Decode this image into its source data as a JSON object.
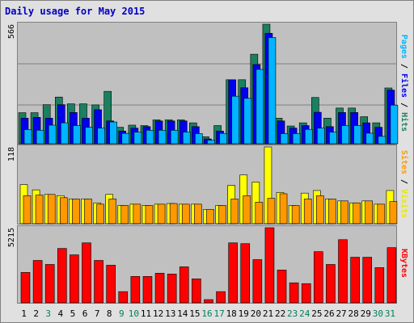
{
  "title": "Daily usage for May 2015",
  "colors": {
    "hits": "#1a8060",
    "files": "#0000ee",
    "pages": "#00b4ff",
    "visits": "#ffff00",
    "sites": "#ff9900",
    "kbytes": "#ff0000",
    "weekday_label": "#000000",
    "weekend_label": "#00805c",
    "plot_bg": "#c0c0c0",
    "frame_bg": "#e0e0e0"
  },
  "legends": {
    "top": [
      {
        "text": "Pages",
        "color": "#00b4ff"
      },
      {
        "text": " / ",
        "color": "#000000"
      },
      {
        "text": "Files",
        "color": "#0000ee"
      },
      {
        "text": " / ",
        "color": "#000000"
      },
      {
        "text": "Hits",
        "color": "#1a8060"
      }
    ],
    "mid": [
      {
        "text": "Sites",
        "color": "#ff9900"
      },
      {
        "text": " / ",
        "color": "#000000"
      },
      {
        "text": "Visits",
        "color": "#e8e800"
      }
    ],
    "bot": [
      {
        "text": "KBytes",
        "color": "#ff0000"
      }
    ]
  },
  "chart_data": [
    {
      "type": "bar",
      "ymax_label": "566",
      "ylim": [
        0,
        566
      ],
      "categories": [
        "1",
        "2",
        "3",
        "4",
        "5",
        "6",
        "7",
        "8",
        "9",
        "10",
        "11",
        "12",
        "13",
        "14",
        "15",
        "16",
        "17",
        "18",
        "19",
        "20",
        "21",
        "22",
        "23",
        "24",
        "25",
        "26",
        "27",
        "28",
        "29",
        "30",
        "31"
      ],
      "weekend_days": [
        "3",
        "9",
        "10",
        "16",
        "17",
        "23",
        "24",
        "30",
        "31"
      ],
      "series": [
        {
          "name": "Hits",
          "values": [
            147,
            147,
            185,
            221,
            189,
            189,
            184,
            248,
            78,
            88,
            86,
            113,
            113,
            113,
            99,
            33,
            86,
            303,
            303,
            424,
            566,
            121,
            84,
            99,
            219,
            121,
            169,
            169,
            128,
            99,
            264
          ]
        },
        {
          "name": "Files",
          "values": [
            121,
            125,
            121,
            185,
            148,
            121,
            161,
            108,
            60,
            74,
            81,
            108,
            108,
            108,
            81,
            23,
            60,
            303,
            265,
            375,
            523,
            108,
            74,
            86,
            149,
            81,
            148,
            148,
            99,
            78,
            254
          ]
        },
        {
          "name": "Pages",
          "values": [
            67,
            64,
            88,
            99,
            86,
            78,
            74,
            103,
            49,
            55,
            64,
            64,
            64,
            55,
            48,
            17,
            49,
            225,
            215,
            352,
            503,
            48,
            48,
            68,
            74,
            55,
            86,
            86,
            50,
            35,
            183
          ]
        }
      ]
    },
    {
      "type": "bar",
      "ymax_label": "118",
      "ylim": [
        0,
        118
      ],
      "categories": [
        "1",
        "2",
        "3",
        "4",
        "5",
        "6",
        "7",
        "8",
        "9",
        "10",
        "11",
        "12",
        "13",
        "14",
        "15",
        "16",
        "17",
        "18",
        "19",
        "20",
        "21",
        "22",
        "23",
        "24",
        "25",
        "26",
        "27",
        "28",
        "29",
        "30",
        "31"
      ],
      "series": [
        {
          "name": "Visits",
          "values": [
            60,
            52,
            45,
            43,
            38,
            38,
            32,
            45,
            28,
            30,
            28,
            30,
            31,
            30,
            30,
            22,
            28,
            59,
            75,
            64,
            118,
            48,
            28,
            47,
            51,
            38,
            35,
            32,
            35,
            30,
            51
          ]
        },
        {
          "name": "Sites",
          "values": [
            43,
            44,
            45,
            40,
            38,
            38,
            30,
            38,
            28,
            30,
            28,
            30,
            31,
            30,
            30,
            22,
            28,
            38,
            43,
            33,
            39,
            46,
            28,
            38,
            43,
            38,
            35,
            32,
            35,
            30,
            34
          ]
        }
      ]
    },
    {
      "type": "bar",
      "ymax_label": "5215",
      "ylim": [
        0,
        5215
      ],
      "categories": [
        "1",
        "2",
        "3",
        "4",
        "5",
        "6",
        "7",
        "8",
        "9",
        "10",
        "11",
        "12",
        "13",
        "14",
        "15",
        "16",
        "17",
        "18",
        "19",
        "20",
        "21",
        "22",
        "23",
        "24",
        "25",
        "26",
        "27",
        "28",
        "29",
        "30",
        "31"
      ],
      "series": [
        {
          "name": "KBytes",
          "values": [
            2110,
            2944,
            2665,
            3776,
            3332,
            4164,
            2944,
            2610,
            777,
            1832,
            1832,
            2055,
            2000,
            2500,
            1665,
            222,
            777,
            4164,
            4109,
            3000,
            5215,
            2277,
            1389,
            1332,
            3554,
            2665,
            4386,
            3164,
            3164,
            2444,
            3832
          ]
        }
      ]
    }
  ]
}
